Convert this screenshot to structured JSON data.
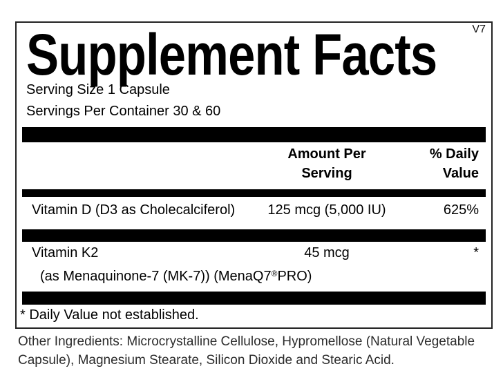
{
  "label": {
    "version": "V7",
    "title": "Supplement Facts",
    "serving_size": "Serving Size 1 Capsule",
    "servings_per_container": "Servings Per Container 30 & 60",
    "columns": {
      "amount_line1": "Amount Per",
      "amount_line2": "Serving",
      "daily_value_line1": "% Daily",
      "daily_value_line2": "Value"
    },
    "rows": [
      {
        "name": "Vitamin D (D3 as Cholecalciferol)",
        "amount": "125 mcg (5,000 IU)",
        "daily_value": "625%"
      },
      {
        "name": "Vitamin K2",
        "amount": "45 mcg",
        "daily_value": "*",
        "sub_name_prefix": "(as Menaquinone-7 (MK-7)) (MenaQ7",
        "sub_name_reg_mark": "®",
        "sub_name_suffix": "PRO)"
      }
    ],
    "footnote": "* Daily Value not established.",
    "other_ingredients_line1": "Other Ingredients: Microcrystalline Cellulose, Hypromellose (Natural Vegetable",
    "other_ingredients_line2": "Capsule), Magnesium Stearate, Silicon Dioxide and Stearic Acid.",
    "colors": {
      "ink": "#000000",
      "background": "#ffffff",
      "bar": "#000000"
    }
  }
}
